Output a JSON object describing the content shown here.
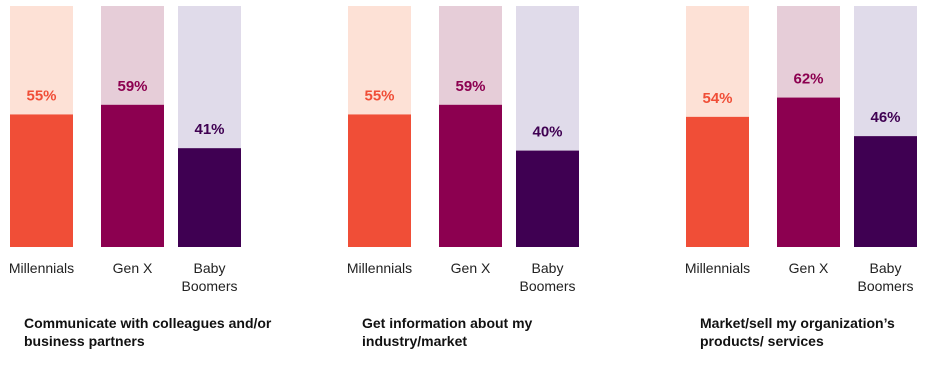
{
  "colors": {
    "millennials": "#f04e37",
    "millennials_bg": "#fde1d6",
    "genx": "#8c0050",
    "genx_bg": "#e6cdd8",
    "boomers": "#3f0052",
    "boomers_bg": "#e0dbea"
  },
  "chart_data": [
    {
      "type": "bar",
      "title": "Communicate with colleagues and/or business partners",
      "categories": [
        "Millennials",
        "Gen X",
        "Baby Boomers"
      ],
      "category_lines": [
        [
          "Millennials"
        ],
        [
          "Gen X"
        ],
        [
          "Baby",
          "Boomers"
        ]
      ],
      "values": [
        55,
        59,
        41
      ],
      "value_labels": [
        "55%",
        "59%",
        "41%"
      ],
      "ylim": [
        0,
        100
      ]
    },
    {
      "type": "bar",
      "title": "Get information about my industry/market",
      "categories": [
        "Millennials",
        "Gen X",
        "Baby Boomers"
      ],
      "category_lines": [
        [
          "Millennials"
        ],
        [
          "Gen X"
        ],
        [
          "Baby",
          "Boomers"
        ]
      ],
      "values": [
        55,
        59,
        40
      ],
      "value_labels": [
        "55%",
        "59%",
        "40%"
      ],
      "ylim": [
        0,
        100
      ]
    },
    {
      "type": "bar",
      "title": "Market/sell my organization’s products/ services",
      "categories": [
        "Millennials",
        "Gen X",
        "Baby Boomers"
      ],
      "category_lines": [
        [
          "Millennials"
        ],
        [
          "Gen X"
        ],
        [
          "Baby",
          "Boomers"
        ]
      ],
      "values": [
        54,
        62,
        46
      ],
      "value_labels": [
        "54%",
        "62%",
        "46%"
      ],
      "ylim": [
        0,
        100
      ]
    }
  ]
}
